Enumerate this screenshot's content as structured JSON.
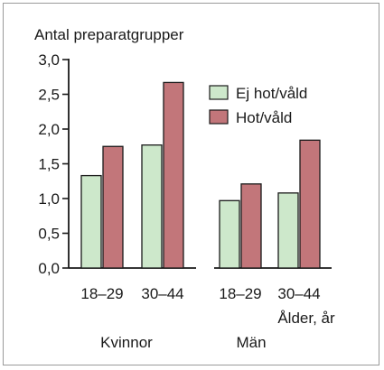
{
  "chart_data": {
    "type": "bar",
    "title": "Antal preparatgrupper",
    "xlabel": "Ålder, år",
    "ylabel": "",
    "ylim": [
      0,
      3.0
    ],
    "yticks": [
      "0,0",
      "0,5",
      "1,0",
      "1,5",
      "2,0",
      "2,5",
      "3,0"
    ],
    "groups": [
      {
        "label": "Kvinnor",
        "categories": [
          "18–29",
          "30–44"
        ]
      },
      {
        "label": "Män",
        "categories": [
          "18–29",
          "30–44"
        ]
      }
    ],
    "series": [
      {
        "name": "Ej hot/våld",
        "color": "#cde8cb",
        "values": [
          1.33,
          1.77,
          0.97,
          1.08
        ]
      },
      {
        "name": "Hot/våld",
        "color": "#c2767a",
        "values": [
          1.75,
          2.67,
          1.21,
          1.84
        ]
      }
    ],
    "grid": false,
    "legend_position": "top-right"
  }
}
